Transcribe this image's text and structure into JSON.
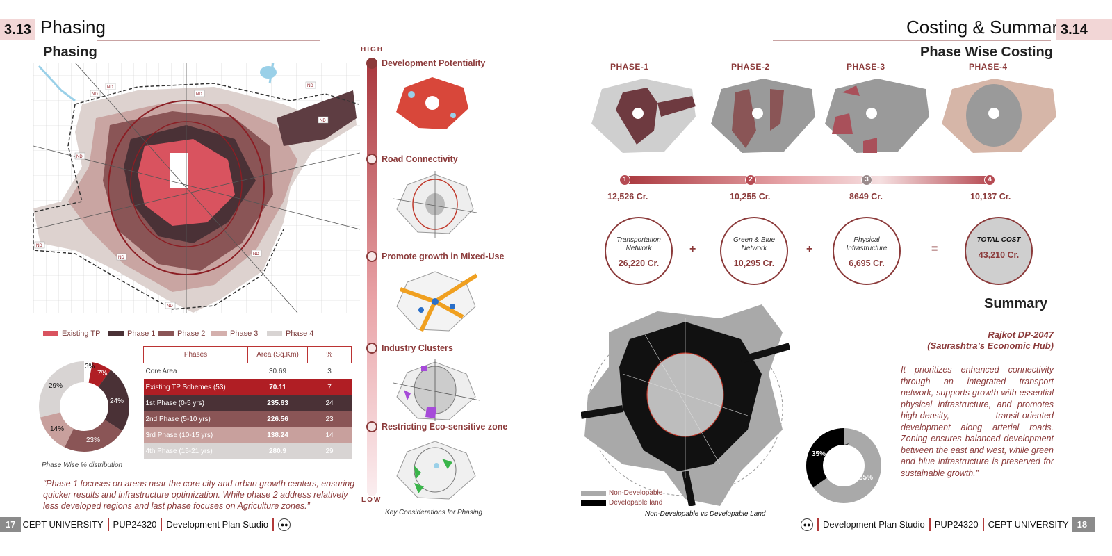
{
  "left_page": {
    "section_number": "3.13",
    "section_title": "Phasing",
    "heading": "Phasing",
    "map_code_labels": [
      "ND"
    ],
    "legend": [
      {
        "label": "Existing TP",
        "color": "#d9535f"
      },
      {
        "label": "Phase 1",
        "color": "#4a3136"
      },
      {
        "label": "Phase 2",
        "color": "#8a5556"
      },
      {
        "label": "Phase 3",
        "color": "#d4b0ad"
      },
      {
        "label": "Phase 4",
        "color": "#d8d4d3"
      }
    ],
    "donut": {
      "caption": "Phase Wise % distribution",
      "labels": [
        "3%",
        "7%",
        "24%",
        "23%",
        "14%",
        "29%"
      ]
    },
    "table": {
      "headers": [
        "Phases",
        "Area (Sq.Km)",
        "%"
      ],
      "rows": [
        {
          "phase": "Core Area",
          "area": "30.69",
          "pct": "3",
          "bg": "#ffffff",
          "fg": "#444444"
        },
        {
          "phase": "Existing TP Schemes (53)",
          "area": "70.11",
          "pct": "7",
          "bg": "#b01e24",
          "fg": "#ffffff"
        },
        {
          "phase": "1st Phase (0-5 yrs)",
          "area": "235.63",
          "pct": "24",
          "bg": "#4a3136",
          "fg": "#ffffff"
        },
        {
          "phase": "2nd Phase (5-10 yrs)",
          "area": "226.56",
          "pct": "23",
          "bg": "#8a5556",
          "fg": "#ffffff"
        },
        {
          "phase": "3rd Phase (10-15 yrs)",
          "area": "138.24",
          "pct": "14",
          "bg": "#c8a09d",
          "fg": "#ffffff"
        },
        {
          "phase": "4th Phase (15-21 yrs)",
          "area": "280.9",
          "pct": "29",
          "bg": "#d8d4d3",
          "fg": "#ffffff"
        }
      ]
    },
    "quote": "“Phase 1 focuses on areas near the core city and urban growth centers, ensuring quicker results and infrastructure optimization. While phase 2 address relatively less developed regions and last phase focuses on Agriculture zones.”",
    "footer": {
      "page": "17",
      "university": "CEPT UNIVERSITY",
      "code": "PUP24320",
      "studio": "Development Plan Studio"
    }
  },
  "considerations": {
    "high_label": "HIGH",
    "low_label": "LOW",
    "items": [
      "Development Potentiality",
      "Road Connectivity",
      "Promote growth in Mixed-Use",
      "Industry Clusters",
      "Restricting Eco-sensitive zone"
    ],
    "caption": "Key Considerations for Phasing"
  },
  "right_page": {
    "section_title": "Costing & Summary",
    "section_number": "3.14",
    "heading": "Phase Wise Costing",
    "phases": [
      {
        "label": "PHASE-1",
        "number": "1",
        "cost": "12,526 Cr."
      },
      {
        "label": "PHASE-2",
        "number": "2",
        "cost": "10,255 Cr."
      },
      {
        "label": "PHASE-3",
        "number": "3",
        "cost": "8649 Cr."
      },
      {
        "label": "PHASE-4",
        "number": "4",
        "cost": "10,137 Cr."
      }
    ],
    "totals": [
      {
        "label": "Transportation Network",
        "value": "26,220 Cr."
      },
      {
        "label": "Green & Blue Network",
        "value": "10,295 Cr."
      },
      {
        "label": "Physical Infrastructure",
        "value": "6,695 Cr."
      },
      {
        "label": "TOTAL COST",
        "value": "43,210 Cr."
      }
    ],
    "operators": [
      "+",
      "+",
      "="
    ],
    "summary_heading": "Summary",
    "summary_title_1": "Rajkot DP-2047",
    "summary_title_2": "(Saurashtra’s Economic Hub)",
    "summary_body": "It prioritizes enhanced connectivity through an integrated transport network, supports growth with essential physical infrastructure, and promotes high-density, transit-oriented development along arterial roads. Zoning ensures balanced development between the east and west, while green and blue infrastructure is preserved for sustainable growth.”",
    "land_legend": [
      {
        "label": "Non-Developable",
        "color": "#a9a9a9"
      },
      {
        "label": "Developable land",
        "color": "#000000"
      }
    ],
    "land_caption": "Non-Developable vs Developable Land",
    "land_donut": {
      "dark_label": "35%",
      "light_label": "65%"
    },
    "footer": {
      "studio": "Development Plan Studio",
      "code": "PUP24320",
      "university": "CEPT UNIVERSITY",
      "page": "18"
    }
  },
  "colors": {
    "accent": "#8b3a3a",
    "badge": "#f2d6d6"
  }
}
